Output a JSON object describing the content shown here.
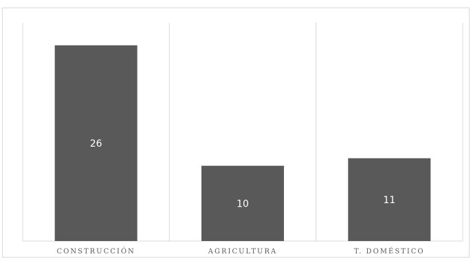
{
  "chart_data": {
    "type": "bar",
    "title": "",
    "xlabel": "",
    "ylabel": "",
    "categories": [
      "CONSTRUCCIÓN",
      "AGRICULTURA",
      "T. DOMÉSTICO"
    ],
    "values": [
      26,
      10,
      11
    ],
    "ylim": [
      0,
      29
    ],
    "bar_color": "#595959",
    "data_label_color": "#ffffff",
    "grid": "vertical category separators",
    "legend": "none"
  }
}
